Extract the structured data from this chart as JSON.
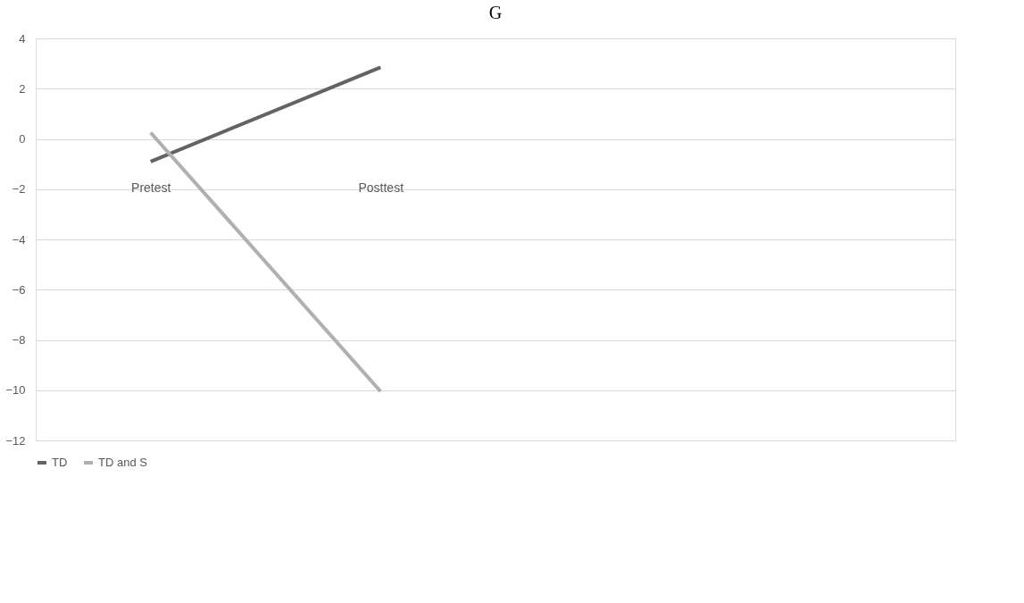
{
  "chart_data": {
    "type": "line",
    "title": "G",
    "categories": [
      "Pretest",
      "Posttest",
      null,
      null
    ],
    "series": [
      {
        "name": "TD",
        "color": "#636363",
        "values": [
          -0.9,
          2.85,
          null,
          null
        ]
      },
      {
        "name": "TD and S",
        "color": "#b0b0b0",
        "values": [
          0.25,
          -10.05,
          null,
          null
        ]
      }
    ],
    "ylim": [
      -12,
      4
    ],
    "yticks": [
      -12,
      -10,
      -8,
      -6,
      -4,
      -2,
      0,
      2,
      4
    ],
    "grid": "y",
    "legend": "bottom",
    "marker": "none",
    "line_style": "solid"
  }
}
